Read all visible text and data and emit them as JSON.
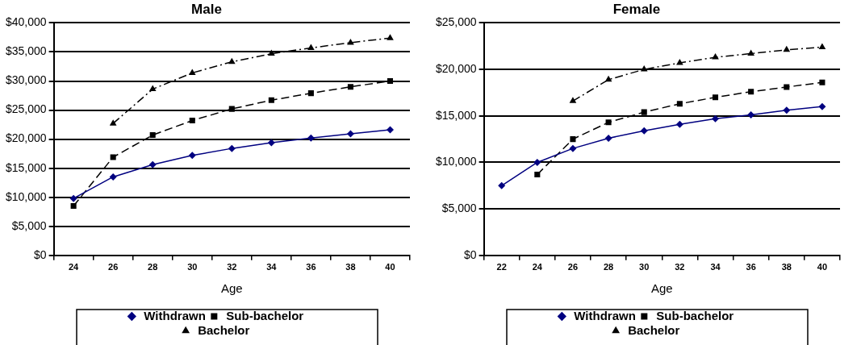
{
  "chart_data": [
    {
      "type": "line",
      "title": "Male",
      "xlabel": "Age",
      "categories": [
        "24",
        "26",
        "28",
        "30",
        "32",
        "34",
        "36",
        "38",
        "40"
      ],
      "ylim": [
        0,
        40000
      ],
      "yticks": [
        {
          "value": 0,
          "label": "$0"
        },
        {
          "value": 5000,
          "label": "$5,000"
        },
        {
          "value": 10000,
          "label": "$10,000"
        },
        {
          "value": 15000,
          "label": "$15,000"
        },
        {
          "value": 20000,
          "label": "$20,000"
        },
        {
          "value": 25000,
          "label": "$25,000"
        },
        {
          "value": 30000,
          "label": "$30,000"
        },
        {
          "value": 35000,
          "label": "$35,000"
        },
        {
          "value": 40000,
          "label": "$40,000"
        }
      ],
      "grid": "y",
      "legend": "bottom",
      "series": [
        {
          "name": "Withdrawn",
          "color": "#000080",
          "marker": "diamond",
          "line_style": "solid",
          "values": [
            9800,
            13500,
            15600,
            17200,
            18400,
            19400,
            20200,
            20900,
            21600
          ]
        },
        {
          "name": "Sub-bachelor",
          "color": "#000000",
          "marker": "square",
          "line_style": "dashed",
          "values": [
            8500,
            16900,
            20700,
            23200,
            25200,
            26700,
            27900,
            29000,
            30000
          ]
        },
        {
          "name": "Bachelor",
          "color": "#000000",
          "marker": "triangle",
          "line_style": "dotted",
          "values": [
            null,
            22700,
            28600,
            31400,
            33300,
            34700,
            35700,
            36600,
            37400
          ]
        }
      ]
    },
    {
      "type": "line",
      "title": "Female",
      "xlabel": "Age",
      "categories": [
        "22",
        "24",
        "26",
        "28",
        "30",
        "32",
        "34",
        "36",
        "38",
        "40"
      ],
      "ylim": [
        0,
        25000
      ],
      "yticks": [
        {
          "value": 0,
          "label": "$0"
        },
        {
          "value": 5000,
          "label": "$5,000"
        },
        {
          "value": 10000,
          "label": "$10,000"
        },
        {
          "value": 15000,
          "label": "$15,000"
        },
        {
          "value": 20000,
          "label": "$20,000"
        },
        {
          "value": 25000,
          "label": "$25,000"
        }
      ],
      "grid": "y",
      "legend": "bottom",
      "series": [
        {
          "name": "Withdrawn",
          "color": "#000080",
          "marker": "diamond",
          "line_style": "solid",
          "values": [
            7500,
            10000,
            11500,
            12600,
            13400,
            14100,
            14700,
            15100,
            15600,
            16000
          ]
        },
        {
          "name": "Sub-bachelor",
          "color": "#000000",
          "marker": "square",
          "line_style": "dashed",
          "values": [
            null,
            8700,
            12500,
            14300,
            15400,
            16300,
            17000,
            17600,
            18100,
            18600
          ]
        },
        {
          "name": "Bachelor",
          "color": "#000000",
          "marker": "triangle",
          "line_style": "dotted",
          "values": [
            null,
            null,
            16600,
            18900,
            20000,
            20700,
            21300,
            21700,
            22100,
            22400
          ]
        }
      ]
    }
  ]
}
